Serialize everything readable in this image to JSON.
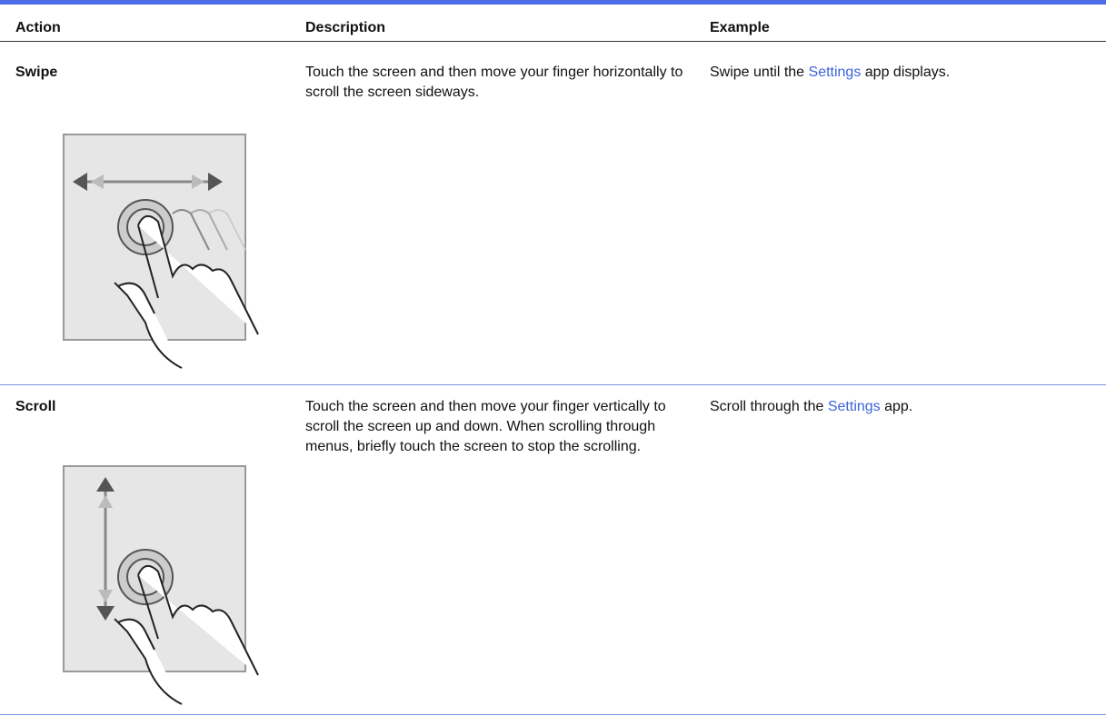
{
  "table": {
    "header": [
      "Action",
      "Description",
      "Example"
    ],
    "rows": [
      {
        "action": "Swipe",
        "description": "Touch the screen and then move your finger horizontally to scroll the screen sideways.",
        "example": [
          "Swipe until the ",
          "Settings",
          " app displays."
        ]
      },
      {
        "action": "Scroll",
        "description": "Touch the screen and then move your finger vertically to scroll the screen up and down. When scrolling through menus, briefly touch the screen to stop the scrolling.",
        "example": [
          "Scroll through the ",
          "Settings",
          " app."
        ]
      }
    ]
  }
}
